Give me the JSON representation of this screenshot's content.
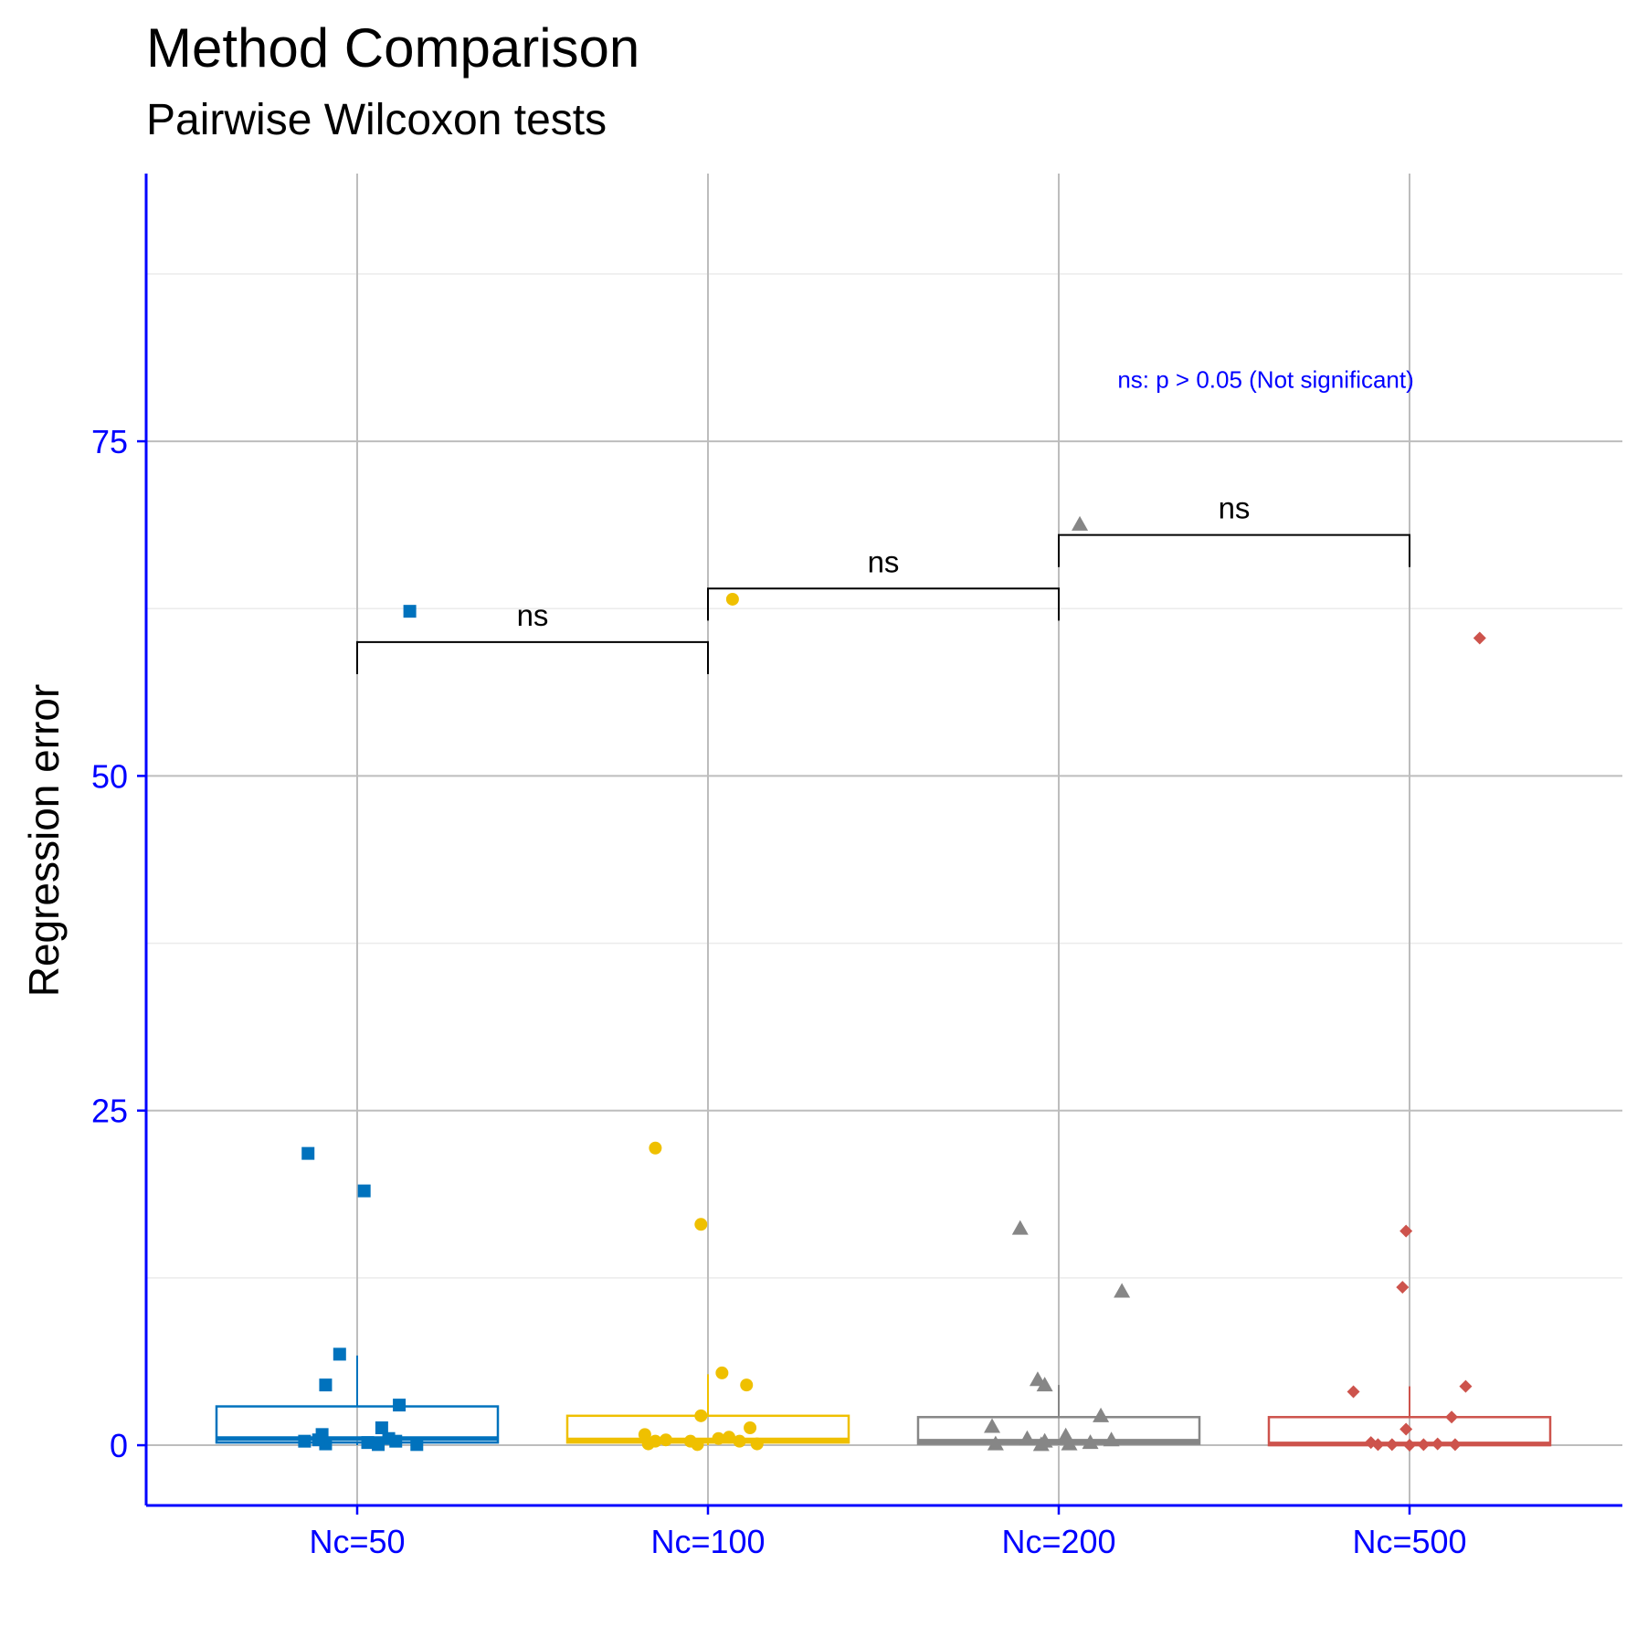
{
  "chart_data": {
    "type": "box",
    "title": "Method Comparison",
    "subtitle": "Pairwise Wilcoxon tests",
    "xlabel": "",
    "ylabel": "Regression error",
    "ylim": [
      -4.5,
      95
    ],
    "y_ticks": [
      0,
      25,
      50,
      75
    ],
    "grid": true,
    "categories": [
      "Nc=50",
      "Nc=100",
      "Nc=200",
      "Nc=500"
    ],
    "series": [
      {
        "category": "Nc=50",
        "color": "#0072bd",
        "shape": "square",
        "box": {
          "q1": 0.2,
          "median": 0.5,
          "q3": 2.9,
          "whisker_low": 0.0,
          "whisker_high": 6.7
        },
        "points": [
          {
            "dx": -0.14,
            "y": 21.8
          },
          {
            "dx": 0.02,
            "y": 19.0
          },
          {
            "dx": -0.05,
            "y": 6.8
          },
          {
            "dx": -0.09,
            "y": 4.5
          },
          {
            "dx": 0.12,
            "y": 3.0
          },
          {
            "dx": 0.07,
            "y": 1.3
          },
          {
            "dx": -0.1,
            "y": 0.8
          },
          {
            "dx": -0.15,
            "y": 0.3
          },
          {
            "dx": -0.09,
            "y": 0.1
          },
          {
            "dx": -0.11,
            "y": 0.4
          },
          {
            "dx": 0.06,
            "y": 0.05
          },
          {
            "dx": 0.09,
            "y": 0.5
          },
          {
            "dx": 0.11,
            "y": 0.3
          },
          {
            "dx": 0.17,
            "y": 0.05
          },
          {
            "dx": 0.03,
            "y": 0.2
          },
          {
            "dx": 0.15,
            "y": 62.3
          }
        ]
      },
      {
        "category": "Nc=100",
        "color": "#efc000",
        "shape": "circle",
        "box": {
          "q1": 0.2,
          "median": 0.4,
          "q3": 2.2,
          "whisker_low": 0.0,
          "whisker_high": 5.3
        },
        "points": [
          {
            "dx": -0.15,
            "y": 22.2
          },
          {
            "dx": -0.02,
            "y": 16.5
          },
          {
            "dx": 0.04,
            "y": 5.4
          },
          {
            "dx": 0.11,
            "y": 4.5
          },
          {
            "dx": -0.02,
            "y": 2.2
          },
          {
            "dx": 0.12,
            "y": 1.3
          },
          {
            "dx": -0.18,
            "y": 0.8
          },
          {
            "dx": -0.15,
            "y": 0.3
          },
          {
            "dx": -0.12,
            "y": 0.4
          },
          {
            "dx": -0.17,
            "y": 0.1
          },
          {
            "dx": -0.05,
            "y": 0.3
          },
          {
            "dx": 0.03,
            "y": 0.5
          },
          {
            "dx": 0.06,
            "y": 0.6
          },
          {
            "dx": 0.09,
            "y": 0.3
          },
          {
            "dx": 0.14,
            "y": 0.1
          },
          {
            "dx": -0.03,
            "y": 0.05
          },
          {
            "dx": 0.07,
            "y": 63.2
          }
        ]
      },
      {
        "category": "Nc=200",
        "color": "#868686",
        "shape": "triangle",
        "box": {
          "q1": 0.1,
          "median": 0.3,
          "q3": 2.1,
          "whisker_low": 0.0,
          "whisker_high": 4.5
        },
        "points": [
          {
            "dx": -0.11,
            "y": 16.2
          },
          {
            "dx": 0.18,
            "y": 11.5
          },
          {
            "dx": -0.06,
            "y": 4.9
          },
          {
            "dx": -0.04,
            "y": 4.5
          },
          {
            "dx": 0.12,
            "y": 2.2
          },
          {
            "dx": -0.19,
            "y": 1.4
          },
          {
            "dx": -0.09,
            "y": 0.5
          },
          {
            "dx": -0.04,
            "y": 0.3
          },
          {
            "dx": 0.02,
            "y": 0.7
          },
          {
            "dx": 0.09,
            "y": 0.2
          },
          {
            "dx": 0.15,
            "y": 0.4
          },
          {
            "dx": -0.18,
            "y": 0.1
          },
          {
            "dx": -0.05,
            "y": 0.05
          },
          {
            "dx": 0.03,
            "y": 0.1
          },
          {
            "dx": 0.06,
            "y": 68.8
          }
        ]
      },
      {
        "category": "Nc=500",
        "color": "#cd534c",
        "shape": "diamond",
        "box": {
          "q1": 0.0,
          "median": 0.1,
          "q3": 2.1,
          "whisker_low": 0.0,
          "whisker_high": 4.4
        },
        "points": [
          {
            "dx": -0.01,
            "y": 16.0
          },
          {
            "dx": -0.02,
            "y": 11.8
          },
          {
            "dx": -0.16,
            "y": 4.0
          },
          {
            "dx": 0.16,
            "y": 4.4
          },
          {
            "dx": 0.12,
            "y": 2.1
          },
          {
            "dx": -0.01,
            "y": 1.2
          },
          {
            "dx": -0.11,
            "y": 0.2
          },
          {
            "dx": -0.09,
            "y": 0.05
          },
          {
            "dx": -0.05,
            "y": 0.05
          },
          {
            "dx": 0.04,
            "y": 0.05
          },
          {
            "dx": 0.08,
            "y": 0.1
          },
          {
            "dx": 0.13,
            "y": 0.05
          },
          {
            "dx": 0.0,
            "y": 0.0
          },
          {
            "dx": 0.2,
            "y": 60.3
          }
        ]
      }
    ],
    "comparisons": [
      {
        "from": "Nc=50",
        "to": "Nc=100",
        "y": 60,
        "label": "ns"
      },
      {
        "from": "Nc=100",
        "to": "Nc=200",
        "y": 64,
        "label": "ns"
      },
      {
        "from": "Nc=200",
        "to": "Nc=500",
        "y": 68,
        "label": "ns"
      }
    ],
    "annotation": {
      "text": "ns: p > 0.05 (Not significant)",
      "x_category_pos": 3.29,
      "y": 79
    }
  }
}
